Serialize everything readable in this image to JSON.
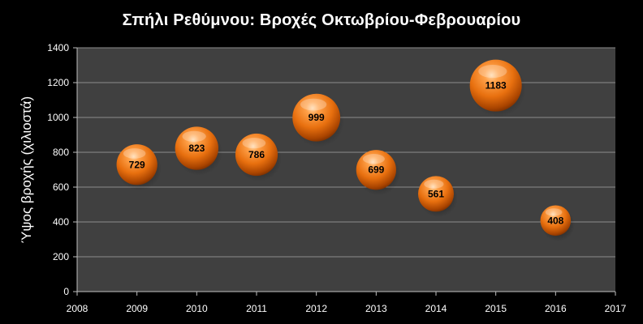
{
  "chart_data": {
    "type": "scatter",
    "title": "Σπήλι Ρεθύμνου: Βροχές Οκτωβρίου-Φεβρουαρίου",
    "xlabel": "",
    "ylabel": "Ύψος βροχής (χιλιοστά)",
    "xlim": [
      2008,
      2017
    ],
    "ylim": [
      0,
      1400
    ],
    "x_ticks": [
      2008,
      2009,
      2010,
      2011,
      2012,
      2013,
      2014,
      2015,
      2016,
      2017
    ],
    "y_ticks": [
      0,
      200,
      400,
      600,
      800,
      1000,
      1200,
      1400
    ],
    "grid": true,
    "legend": "none",
    "points": [
      {
        "x": 2009,
        "y": 729,
        "label": "729"
      },
      {
        "x": 2010,
        "y": 823,
        "label": "823"
      },
      {
        "x": 2011,
        "y": 786,
        "label": "786"
      },
      {
        "x": 2012,
        "y": 999,
        "label": "999"
      },
      {
        "x": 2013,
        "y": 699,
        "label": "699"
      },
      {
        "x": 2014,
        "y": 561,
        "label": "561"
      },
      {
        "x": 2015,
        "y": 1183,
        "label": "1183"
      },
      {
        "x": 2016,
        "y": 408,
        "label": "408"
      }
    ],
    "colors": {
      "background": "#000000",
      "plot_area": "#404040",
      "grid": "#8c8c8c",
      "bubble": "#f07a1a"
    }
  }
}
